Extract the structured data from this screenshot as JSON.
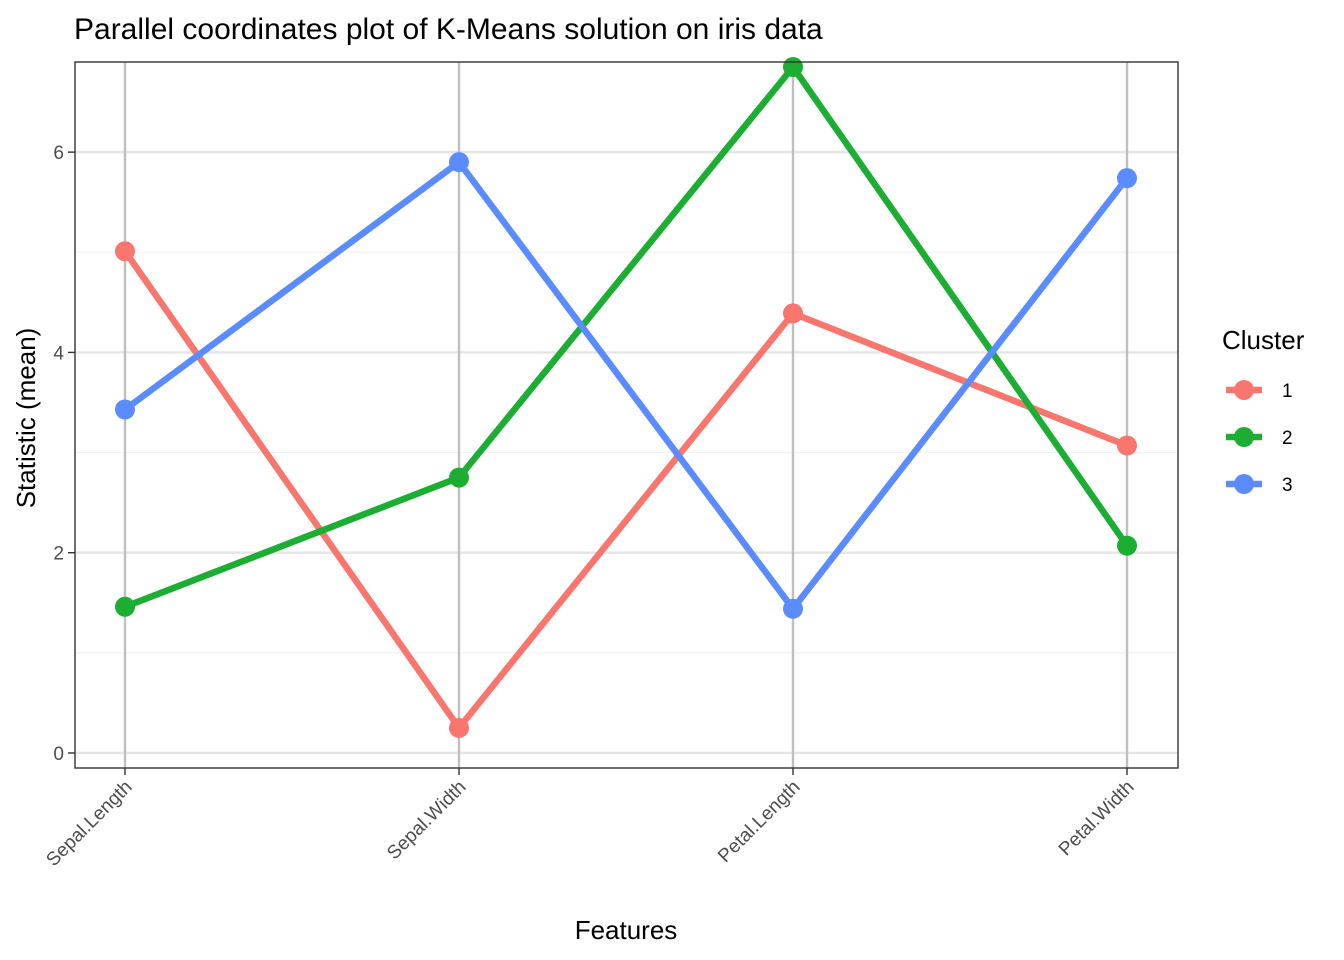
{
  "chart_data": {
    "type": "line",
    "title": "Parallel coordinates plot of K-Means solution on iris data",
    "xlabel": "Features",
    "ylabel": "Statistic (mean)",
    "categories": [
      "Sepal.Length",
      "Sepal.Width",
      "Petal.Length",
      "Petal.Width"
    ],
    "ylim": [
      -0.15,
      6.9
    ],
    "yticks": [
      "0",
      "2",
      "4",
      "6"
    ],
    "grid": true,
    "legend": {
      "title": "Cluster",
      "placement": "right"
    },
    "series": [
      {
        "name": "1",
        "color": "#F8766D",
        "values": [
          5.01,
          0.25,
          4.39,
          3.07
        ]
      },
      {
        "name": "2",
        "color": "#1CAE32",
        "values": [
          1.46,
          2.75,
          6.85,
          2.07
        ]
      },
      {
        "name": "3",
        "color": "#5A8CFF",
        "values": [
          3.43,
          5.9,
          1.44,
          5.74
        ]
      }
    ]
  }
}
